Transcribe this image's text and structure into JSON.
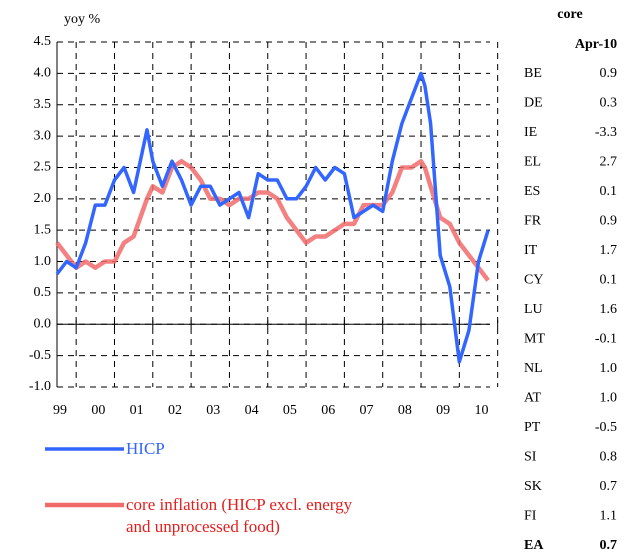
{
  "chart_data": {
    "type": "line",
    "ylabel": "yoy %",
    "x": [
      1999.0,
      1999.25,
      1999.5,
      1999.75,
      2000.0,
      2000.25,
      2000.5,
      2000.75,
      2001.0,
      2001.35,
      2001.5,
      2001.75,
      2002.0,
      2002.25,
      2002.5,
      2002.75,
      2003.0,
      2003.25,
      2003.5,
      2003.75,
      2004.0,
      2004.25,
      2004.5,
      2004.75,
      2005.0,
      2005.25,
      2005.5,
      2005.75,
      2006.0,
      2006.25,
      2006.5,
      2006.75,
      2007.0,
      2007.25,
      2007.5,
      2007.75,
      2008.0,
      2008.25,
      2008.5,
      2008.6,
      2008.75,
      2009.0,
      2009.25,
      2009.5,
      2009.75,
      2010.0,
      2010.25
    ],
    "series": [
      {
        "name": "HICP",
        "color": "#3366ff",
        "values": [
          0.8,
          1.0,
          0.9,
          1.3,
          1.9,
          1.9,
          2.3,
          2.5,
          2.1,
          3.1,
          2.6,
          2.2,
          2.6,
          2.3,
          1.9,
          2.2,
          2.2,
          1.9,
          2.0,
          2.1,
          1.7,
          2.4,
          2.3,
          2.3,
          2.0,
          2.0,
          2.2,
          2.5,
          2.3,
          2.5,
          2.4,
          1.7,
          1.8,
          1.9,
          1.8,
          2.6,
          3.2,
          3.6,
          4.0,
          3.8,
          3.2,
          1.1,
          0.6,
          -0.6,
          -0.1,
          1.0,
          1.5
        ]
      },
      {
        "name": "core inflation (HICP excl. energy and unprocessed food)",
        "color": "#f26b6b",
        "values": [
          1.3,
          1.1,
          0.9,
          1.0,
          0.9,
          1.0,
          1.0,
          1.3,
          1.4,
          2.0,
          2.2,
          2.1,
          2.5,
          2.6,
          2.5,
          2.3,
          2.0,
          2.0,
          1.9,
          2.0,
          2.0,
          2.1,
          2.1,
          2.0,
          1.7,
          1.5,
          1.3,
          1.4,
          1.4,
          1.5,
          1.6,
          1.6,
          1.9,
          1.9,
          1.9,
          2.1,
          2.5,
          2.5,
          2.6,
          2.5,
          2.2,
          1.7,
          1.6,
          1.3,
          1.1,
          0.9,
          0.7
        ]
      }
    ],
    "xlim": [
      1999,
      2010.3
    ],
    "xticks": [
      {
        "value": 1999,
        "label": "99"
      },
      {
        "value": 2000,
        "label": "00"
      },
      {
        "value": 2001,
        "label": "01"
      },
      {
        "value": 2002,
        "label": "02"
      },
      {
        "value": 2003,
        "label": "03"
      },
      {
        "value": 2004,
        "label": "04"
      },
      {
        "value": 2005,
        "label": "05"
      },
      {
        "value": 2006,
        "label": "06"
      },
      {
        "value": 2007,
        "label": "07"
      },
      {
        "value": 2008,
        "label": "08"
      },
      {
        "value": 2009,
        "label": "09"
      },
      {
        "value": 2010,
        "label": "10"
      }
    ],
    "ylim": [
      -1,
      4.5
    ],
    "yticks": [
      {
        "value": -1,
        "label": "-1.0"
      },
      -0.5,
      {
        "value": 0,
        "label": "0.0"
      },
      0.5,
      {
        "value": 1,
        "label": "1.0"
      },
      1.5,
      {
        "value": 2,
        "label": "2.0"
      },
      2.5,
      {
        "value": 3,
        "label": "3.0"
      },
      3.5,
      {
        "value": 4,
        "label": "4.0"
      },
      4.5
    ],
    "grid": true
  },
  "table": {
    "header": [
      "core",
      "Apr-10"
    ],
    "rows": [
      [
        "BE",
        "0.9"
      ],
      [
        "DE",
        "0.3"
      ],
      [
        "IE",
        "-3.3"
      ],
      [
        "EL",
        "2.7"
      ],
      [
        "ES",
        "0.1"
      ],
      [
        "FR",
        "0.9"
      ],
      [
        "IT",
        "1.7"
      ],
      [
        "CY",
        "0.1"
      ],
      [
        "LU",
        "1.6"
      ],
      [
        "MT",
        "-0.1"
      ],
      [
        "NL",
        "1.0"
      ],
      [
        "AT",
        "1.0"
      ],
      [
        "PT",
        "-0.5"
      ],
      [
        "SI",
        "0.8"
      ],
      [
        "SK",
        "0.7"
      ],
      [
        "FI",
        "1.1"
      ],
      [
        "EA",
        "0.7"
      ]
    ]
  }
}
